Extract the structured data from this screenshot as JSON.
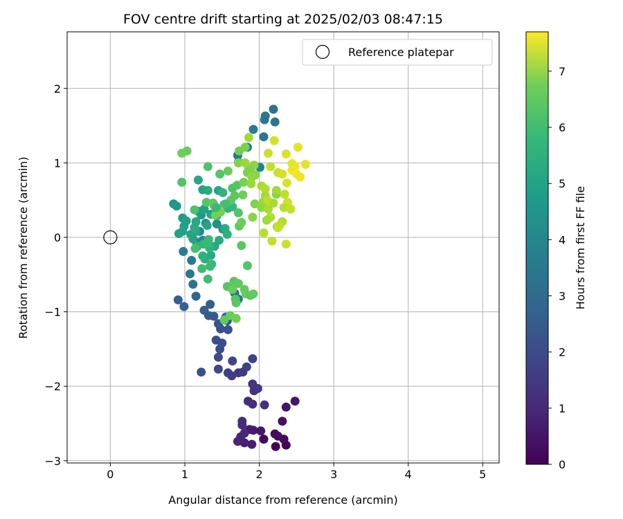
{
  "chart_data": {
    "type": "scatter",
    "title": "FOV centre drift starting at 2025/02/03 08:47:15",
    "xlabel": "Angular distance from reference (arcmin)",
    "ylabel": "Rotation from reference (arcmin)",
    "xlim": [
      -0.58,
      5.22
    ],
    "ylim": [
      -3.03,
      2.76
    ],
    "x_ticks": [
      0,
      1,
      2,
      3,
      4,
      5
    ],
    "y_ticks": [
      -3,
      -2,
      -1,
      0,
      1,
      2
    ],
    "y_tick_labels": [
      "−3",
      "−2",
      "−1",
      "0",
      "1",
      "2"
    ],
    "grid": true,
    "legend": {
      "position": "top-right",
      "entries": [
        "Reference platepar"
      ]
    },
    "reference_point": {
      "x": 0,
      "y": 0
    },
    "colorbar": {
      "label": "Hours from first FF file",
      "range": [
        0,
        7.7
      ],
      "ticks": [
        0,
        1,
        2,
        3,
        4,
        5,
        6,
        7
      ],
      "colormap": "viridis"
    },
    "points": [
      [
        2.22,
        -2.81,
        0.05
      ],
      [
        2.36,
        -2.79,
        0.1
      ],
      [
        2.06,
        -2.71,
        0.15
      ],
      [
        2.33,
        -2.71,
        0.2
      ],
      [
        2.21,
        -2.64,
        0.25
      ],
      [
        2.25,
        -2.67,
        0.3
      ],
      [
        2.31,
        -2.47,
        0.35
      ],
      [
        2.36,
        -2.28,
        0.4
      ],
      [
        2.48,
        -2.2,
        0.45
      ],
      [
        2.02,
        -2.6,
        0.5
      ],
      [
        1.92,
        -2.59,
        0.55
      ],
      [
        1.87,
        -2.58,
        0.6
      ],
      [
        1.9,
        -2.78,
        0.65
      ],
      [
        1.8,
        -2.76,
        0.7
      ],
      [
        1.75,
        -2.68,
        0.75
      ],
      [
        1.71,
        -2.74,
        0.8
      ],
      [
        1.8,
        -2.63,
        0.85
      ],
      [
        1.77,
        -2.52,
        0.9
      ],
      [
        1.77,
        -2.47,
        0.95
      ],
      [
        1.85,
        -2.2,
        1.0
      ],
      [
        1.91,
        -2.24,
        1.05
      ],
      [
        2.07,
        -2.25,
        1.1
      ],
      [
        1.93,
        -2.06,
        1.15
      ],
      [
        1.91,
        -1.97,
        1.2
      ],
      [
        1.98,
        -2.03,
        1.25
      ],
      [
        1.78,
        -1.81,
        1.3
      ],
      [
        1.72,
        -1.82,
        1.35
      ],
      [
        1.63,
        -1.86,
        1.4
      ],
      [
        1.58,
        -1.82,
        1.45
      ],
      [
        1.83,
        -1.74,
        1.5
      ],
      [
        1.91,
        -1.63,
        1.55
      ],
      [
        1.64,
        -1.66,
        1.6
      ],
      [
        1.45,
        -1.77,
        1.65
      ],
      [
        1.45,
        -1.61,
        1.7
      ],
      [
        1.47,
        -1.5,
        1.75
      ],
      [
        1.5,
        -1.42,
        1.8
      ],
      [
        1.42,
        -1.38,
        1.85
      ],
      [
        1.22,
        -1.81,
        1.9
      ],
      [
        1.48,
        -1.23,
        1.95
      ],
      [
        1.58,
        -1.24,
        2.0
      ],
      [
        1.45,
        -1.16,
        2.05
      ],
      [
        1.57,
        -1.12,
        2.1
      ],
      [
        1.39,
        -1.06,
        2.15
      ],
      [
        1.32,
        -1.05,
        2.2
      ],
      [
        1.26,
        -0.98,
        2.25
      ],
      [
        1.34,
        -0.9,
        2.3
      ],
      [
        0.91,
        -0.84,
        2.35
      ],
      [
        0.99,
        -0.93,
        2.4
      ],
      [
        1.15,
        -0.79,
        2.5
      ],
      [
        1.55,
        -1.07,
        2.6
      ],
      [
        1.67,
        -0.75,
        2.7
      ],
      [
        1.72,
        -0.83,
        2.8
      ],
      [
        1.11,
        -0.63,
        3.0
      ],
      [
        1.07,
        -0.49,
        3.1
      ],
      [
        1.09,
        -0.31,
        3.2
      ],
      [
        0.98,
        -0.19,
        3.3
      ],
      [
        1.16,
        -0.07,
        3.4
      ],
      [
        1.24,
        -0.04,
        3.5
      ],
      [
        1.2,
        0.08,
        3.6
      ],
      [
        1.28,
        0.19,
        3.7
      ],
      [
        1.43,
        0.18,
        3.8
      ],
      [
        1.51,
        0.11,
        3.9
      ],
      [
        1.71,
        1.1,
        3.1
      ],
      [
        1.84,
        1.21,
        3.0
      ],
      [
        1.92,
        1.45,
        3.2
      ],
      [
        2.06,
        1.35,
        3.0
      ],
      [
        2.07,
        1.58,
        3.1
      ],
      [
        2.08,
        1.63,
        3.0
      ],
      [
        2.21,
        1.55,
        3.0
      ],
      [
        2.19,
        1.72,
        2.9
      ],
      [
        2.01,
        0.94,
        3.5
      ],
      [
        1.72,
        1.01,
        3.6
      ],
      [
        0.85,
        0.45,
        4.0
      ],
      [
        0.89,
        0.42,
        4.1
      ],
      [
        0.97,
        0.26,
        4.2
      ],
      [
        0.99,
        0.15,
        4.3
      ],
      [
        1.02,
        0.22,
        4.3
      ],
      [
        0.97,
        0.08,
        4.4
      ],
      [
        0.92,
        0.05,
        4.4
      ],
      [
        1.08,
        0.04,
        4.5
      ],
      [
        1.11,
        -0.02,
        4.5
      ],
      [
        1.15,
        0.08,
        4.6
      ],
      [
        1.22,
        0.3,
        4.2
      ],
      [
        1.18,
        0.35,
        4.3
      ],
      [
        1.26,
        0.38,
        4.4
      ],
      [
        1.3,
        0.16,
        4.5
      ],
      [
        1.35,
        0.31,
        4.4
      ],
      [
        1.15,
        0.21,
        4.6
      ],
      [
        1.13,
        0.13,
        4.7
      ],
      [
        1.24,
        0.64,
        4.5
      ],
      [
        1.18,
        0.77,
        4.6
      ],
      [
        1.31,
        0.63,
        4.7
      ],
      [
        1.45,
        0.63,
        4.5
      ],
      [
        1.53,
        0.44,
        4.8
      ],
      [
        1.43,
        0.29,
        4.9
      ],
      [
        1.58,
        0.39,
        5.0
      ],
      [
        1.64,
        0.41,
        5.1
      ],
      [
        1.54,
        0.12,
        4.8
      ],
      [
        1.57,
        0.04,
        4.9
      ],
      [
        1.46,
        -0.04,
        4.7
      ],
      [
        1.4,
        -0.12,
        4.6
      ],
      [
        1.35,
        -0.24,
        4.7
      ],
      [
        1.27,
        -0.29,
        4.8
      ],
      [
        1.24,
        -0.25,
        4.9
      ],
      [
        1.33,
        -0.14,
        5.0
      ],
      [
        1.17,
        -0.12,
        5.0
      ],
      [
        1.25,
        -0.09,
        5.1
      ],
      [
        1.3,
        -0.07,
        5.2
      ],
      [
        1.32,
        -0.03,
        5.2
      ],
      [
        1.36,
        -0.36,
        5.1
      ],
      [
        1.34,
        -0.39,
        5.2
      ],
      [
        1.23,
        -0.42,
        5.3
      ],
      [
        1.14,
        -0.15,
        5.4
      ],
      [
        1.31,
        -0.56,
        5.3
      ],
      [
        1.13,
        0.37,
        5.5
      ],
      [
        1.29,
        0.47,
        5.6
      ],
      [
        1.38,
        0.46,
        5.7
      ],
      [
        1.39,
        0.43,
        5.8
      ],
      [
        1.47,
        0.38,
        5.9
      ],
      [
        1.41,
        0.3,
        6.0
      ],
      [
        1.48,
        0.34,
        6.1
      ],
      [
        1.64,
        0.66,
        5.5
      ],
      [
        1.7,
        0.7,
        5.6
      ],
      [
        1.67,
        0.56,
        5.7
      ],
      [
        1.72,
        0.33,
        5.6
      ],
      [
        1.73,
        0.15,
        5.8
      ],
      [
        1.76,
        0.2,
        5.9
      ],
      [
        1.76,
        -0.11,
        5.7
      ],
      [
        1.84,
        -0.38,
        5.6
      ],
      [
        1.57,
        -0.66,
        5.6
      ],
      [
        1.66,
        -0.59,
        5.7
      ],
      [
        1.72,
        -0.62,
        5.8
      ],
      [
        1.64,
        -0.7,
        5.9
      ],
      [
        1.68,
        -0.83,
        5.6
      ],
      [
        1.69,
        -0.88,
        5.7
      ],
      [
        1.8,
        -0.7,
        5.8
      ],
      [
        1.82,
        -0.76,
        5.9
      ],
      [
        1.88,
        -0.78,
        5.7
      ],
      [
        1.92,
        -0.76,
        5.8
      ],
      [
        1.61,
        -1.05,
        5.9
      ],
      [
        1.53,
        -1.11,
        5.8
      ],
      [
        1.69,
        -1.09,
        6.0
      ],
      [
        0.96,
        0.74,
        5.6
      ],
      [
        0.96,
        1.13,
        6.0
      ],
      [
        1.03,
        1.16,
        5.9
      ],
      [
        1.31,
        0.95,
        5.5
      ],
      [
        1.47,
        0.85,
        5.6
      ],
      [
        1.58,
        0.89,
        5.9
      ],
      [
        1.73,
        1.16,
        6.0
      ],
      [
        1.81,
        1.21,
        6.1
      ],
      [
        1.72,
        1.0,
        6.2
      ],
      [
        1.79,
        0.74,
        6.1
      ],
      [
        1.84,
        0.87,
        6.2
      ],
      [
        1.89,
        0.92,
        6.3
      ],
      [
        1.93,
        0.97,
        6.4
      ],
      [
        1.86,
        0.92,
        6.2
      ],
      [
        1.81,
        1.0,
        6.5
      ],
      [
        1.86,
        1.34,
        6.6
      ],
      [
        1.95,
        0.84,
        6.3
      ],
      [
        1.9,
        0.81,
        6.4
      ],
      [
        1.89,
        0.72,
        6.5
      ],
      [
        1.94,
        0.45,
        6.2
      ],
      [
        1.91,
        0.27,
        6.3
      ],
      [
        2.03,
        0.4,
        6.4
      ],
      [
        2.06,
        0.48,
        6.5
      ],
      [
        2.08,
        0.56,
        6.6
      ],
      [
        2.03,
        0.69,
        6.7
      ],
      [
        2.08,
        0.65,
        6.8
      ],
      [
        2.11,
        0.5,
        6.9
      ],
      [
        2.12,
        0.38,
        6.7
      ],
      [
        2.15,
        0.27,
        6.8
      ],
      [
        2.1,
        0.23,
        6.6
      ],
      [
        2.06,
        0.06,
        6.9
      ],
      [
        2.17,
        -0.05,
        7.0
      ],
      [
        2.24,
        0.14,
        6.5
      ],
      [
        2.23,
        0.58,
        6.3
      ],
      [
        2.23,
        0.63,
        6.6
      ],
      [
        2.19,
        0.46,
        6.7
      ],
      [
        2.12,
        1.13,
        7.1
      ],
      [
        2.2,
        1.3,
        7.2
      ],
      [
        2.15,
        0.95,
        7.0
      ],
      [
        2.25,
        0.87,
        7.1
      ],
      [
        2.31,
        0.85,
        7.2
      ],
      [
        2.36,
        1.12,
        7.3
      ],
      [
        2.44,
        0.99,
        7.4
      ],
      [
        2.44,
        0.9,
        7.5
      ],
      [
        2.48,
        0.95,
        7.5
      ],
      [
        2.5,
        0.85,
        7.6
      ],
      [
        2.52,
        1.21,
        7.4
      ],
      [
        2.55,
        0.81,
        7.5
      ],
      [
        2.62,
        0.98,
        7.4
      ],
      [
        2.37,
        0.73,
        7.3
      ],
      [
        2.34,
        0.58,
        7.0
      ],
      [
        2.38,
        0.47,
        7.1
      ],
      [
        2.33,
        0.4,
        6.9
      ],
      [
        2.42,
        0.38,
        7.0
      ],
      [
        2.31,
        0.21,
        6.8
      ],
      [
        2.27,
        0.16,
        6.9
      ],
      [
        2.25,
        0.13,
        7.0
      ],
      [
        2.36,
        -0.09,
        7.1
      ],
      [
        1.78,
        0.57,
        6.0
      ],
      [
        1.62,
        0.5,
        5.7
      ],
      [
        1.55,
        0.45,
        5.4
      ],
      [
        1.42,
        0.4,
        5.2
      ],
      [
        1.51,
        0.6,
        5.0
      ]
    ]
  }
}
